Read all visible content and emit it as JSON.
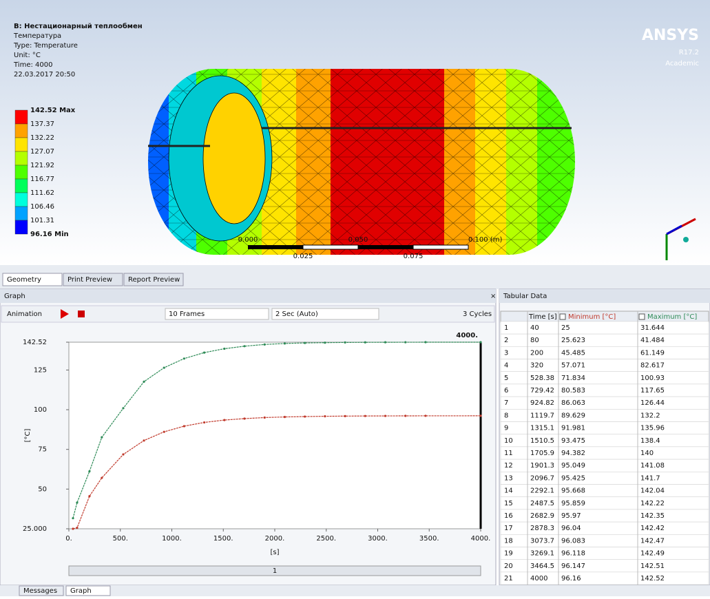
{
  "viewport": {
    "title": "B: Нестационарный теплообмен",
    "lines": [
      "Температура",
      "Type: Temperature",
      "Unit: °C",
      "Time: 4000",
      "22.03.2017 20:50"
    ],
    "legend_labels": [
      "142.52 Max",
      "137.37",
      "132.22",
      "127.07",
      "121.92",
      "116.77",
      "111.62",
      "106.46",
      "101.31",
      "96.16 Min"
    ],
    "legend_colors": [
      "#ff0000",
      "#ffa200",
      "#ffe400",
      "#b4ff00",
      "#4eff00",
      "#00ff5a",
      "#00ffdc",
      "#00a2ff",
      "#0000ff"
    ],
    "brand": "ANSYS",
    "version": "R17.2",
    "edition": "Academic",
    "scale_top": [
      "0.000",
      "0.050",
      "0.100 (m)"
    ],
    "scale_bottom": [
      "0.025",
      "0.075"
    ]
  },
  "tabs": [
    "Geometry",
    "Print Preview",
    "Report Preview"
  ],
  "graph": {
    "title": "Graph",
    "animation": "Animation",
    "frames": "10 Frames",
    "speed": "2 Sec (Auto)",
    "cycles": "3 Cycles",
    "frame_label": "1"
  },
  "chart_data": {
    "type": "line",
    "x": [
      40,
      80,
      200,
      320,
      528.38,
      729.42,
      924.82,
      1119.7,
      1315.1,
      1510.5,
      1705.9,
      1901.3,
      2096.7,
      2292.1,
      2487.5,
      2682.9,
      2878.3,
      3073.7,
      3269.1,
      3464.5,
      4000
    ],
    "series": [
      {
        "name": "Minimum [°C]",
        "color": "#c0392b",
        "values": [
          25.0,
          25.623,
          45.485,
          57.071,
          71.834,
          80.583,
          86.063,
          89.629,
          91.981,
          93.475,
          94.382,
          95.049,
          95.425,
          95.668,
          95.859,
          95.97,
          96.04,
          96.083,
          96.118,
          96.147,
          96.16
        ]
      },
      {
        "name": "Maximum [°C]",
        "color": "#2e8b57",
        "values": [
          31.644,
          41.484,
          61.149,
          82.617,
          100.93,
          117.65,
          126.44,
          132.2,
          135.96,
          138.4,
          140,
          141.08,
          141.7,
          142.04,
          142.22,
          142.35,
          142.42,
          142.47,
          142.49,
          142.51,
          142.52
        ]
      }
    ],
    "xlim": [
      0,
      4000
    ],
    "xticks": [
      {
        "value": 0,
        "label": "0."
      },
      {
        "value": 500,
        "label": "500."
      },
      {
        "value": 1000,
        "label": "1000."
      },
      {
        "value": 1500,
        "label": "1500."
      },
      {
        "value": 2000,
        "label": "2000."
      },
      {
        "value": 2500,
        "label": "2500."
      },
      {
        "value": 3000,
        "label": "3000."
      },
      {
        "value": 3500,
        "label": "3500."
      },
      {
        "value": 4000,
        "label": "4000."
      }
    ],
    "ylim": [
      25,
      142.52
    ],
    "yticks": [
      {
        "value": 25,
        "label": "25.000"
      },
      50,
      75,
      100,
      125,
      142.52
    ],
    "xlabel": "[s]",
    "ylabel": "[°C]",
    "cursor": {
      "value": 4000,
      "label": "4000."
    }
  },
  "table": {
    "title": "Tabular Data",
    "time_header": "Time [s]",
    "row_numbers": [
      1,
      2,
      3,
      4,
      5,
      6,
      7,
      8,
      9,
      10,
      11,
      12,
      13,
      14,
      15,
      16,
      17,
      18,
      19,
      20,
      21
    ]
  },
  "bottom_tabs": [
    "Messages",
    "Graph"
  ]
}
